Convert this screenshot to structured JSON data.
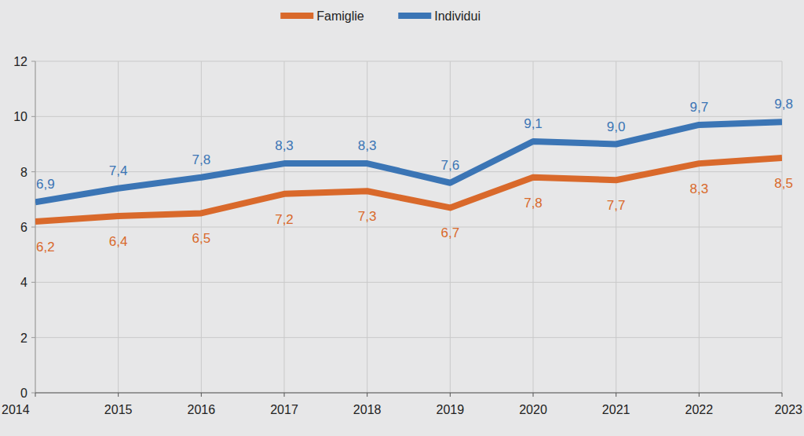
{
  "chart_data": {
    "type": "line",
    "categories": [
      "2014",
      "2015",
      "2016",
      "2017",
      "2018",
      "2019",
      "2020",
      "2021",
      "2022",
      "2023"
    ],
    "series": [
      {
        "name": "Famiglie",
        "color": "#d9692b",
        "values": [
          6.2,
          6.4,
          6.5,
          7.2,
          7.3,
          6.7,
          7.8,
          7.7,
          8.3,
          8.5
        ],
        "value_labels": [
          "6,2",
          "6,4",
          "6,5",
          "7,2",
          "7,3",
          "6,7",
          "7,8",
          "7,7",
          "8,3",
          "8,5"
        ]
      },
      {
        "name": "Individui",
        "color": "#3b75b5",
        "values": [
          6.9,
          7.4,
          7.8,
          8.3,
          8.3,
          7.6,
          9.1,
          9.0,
          9.7,
          9.8
        ],
        "value_labels": [
          "6,9",
          "7,4",
          "7,8",
          "8,3",
          "8,3",
          "7,6",
          "9,1",
          "9,0",
          "9,7",
          "9,8"
        ]
      }
    ],
    "ylim": [
      0,
      12
    ],
    "yticks": [
      0,
      2,
      4,
      6,
      8,
      10,
      12
    ],
    "grid": true,
    "legend": "top",
    "data_labels": true
  }
}
